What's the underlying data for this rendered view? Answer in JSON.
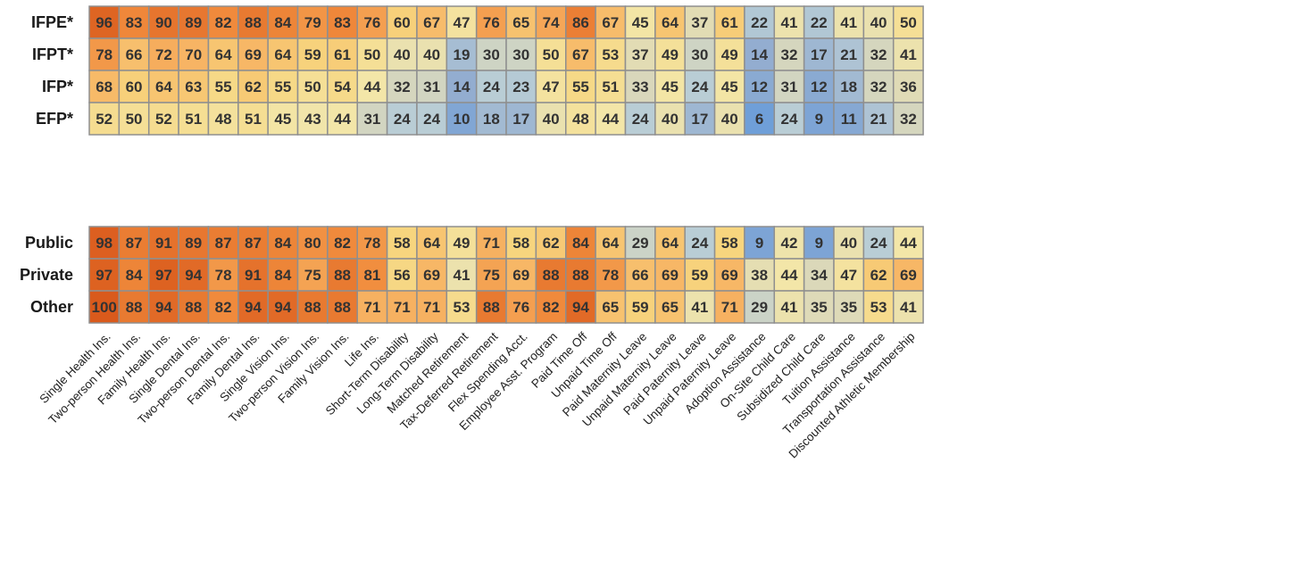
{
  "chart_data": {
    "type": "heatmap",
    "categories": [
      "Single Health Ins.",
      "Two-person Health Ins.",
      "Family Health Ins.",
      "Single Dental Ins.",
      "Two-person Dental Ins.",
      "Family Dental Ins.",
      "Single Vision Ins.",
      "Two-person Vision Ins.",
      "Family Vision Ins.",
      "Life Ins.",
      "Short-Term Disability",
      "Long-Term Disability",
      "Matched Retirement",
      "Tax-Deferred Retirement",
      "Flex Spending Acct.",
      "Employee Asst. Program",
      "Paid Time Off",
      "Unpaid Time Off",
      "Paid Maternity Leave",
      "Unpaid Maternity Leave",
      "Paid Paternity Leave",
      "Unpaid Paternity Leave",
      "Adoption Assistance",
      "On-Site Child Care",
      "Subsidized Child Care",
      "Tuition Assistance",
      "Transportation Assistance",
      "Discounted Athletic Membership"
    ],
    "panels": [
      {
        "rows": [
          {
            "name": "IFPE*",
            "values": [
              96,
              83,
              90,
              89,
              82,
              88,
              84,
              79,
              83,
              76,
              60,
              67,
              47,
              76,
              65,
              74,
              86,
              67,
              45,
              64,
              37,
              61,
              22,
              41,
              22,
              41,
              40,
              50
            ]
          },
          {
            "name": "IFPT*",
            "values": [
              78,
              66,
              72,
              70,
              64,
              69,
              64,
              59,
              61,
              50,
              40,
              40,
              19,
              30,
              30,
              50,
              67,
              53,
              37,
              49,
              30,
              49,
              14,
              32,
              17,
              21,
              32,
              41
            ]
          },
          {
            "name": "IFP*",
            "values": [
              68,
              60,
              64,
              63,
              55,
              62,
              55,
              50,
              54,
              44,
              32,
              31,
              14,
              24,
              23,
              47,
              55,
              51,
              33,
              45,
              24,
              45,
              12,
              31,
              12,
              18,
              32,
              36
            ]
          },
          {
            "name": "EFP*",
            "values": [
              52,
              50,
              52,
              51,
              48,
              51,
              45,
              43,
              44,
              31,
              24,
              24,
              10,
              18,
              17,
              40,
              48,
              44,
              24,
              40,
              17,
              40,
              6,
              24,
              9,
              11,
              21,
              32
            ]
          }
        ]
      },
      {
        "rows": [
          {
            "name": "Public",
            "values": [
              98,
              87,
              91,
              89,
              87,
              87,
              84,
              80,
              82,
              78,
              58,
              64,
              49,
              71,
              58,
              62,
              84,
              64,
              29,
              64,
              24,
              58,
              9,
              42,
              9,
              40,
              24,
              44
            ]
          },
          {
            "name": "Private",
            "values": [
              97,
              84,
              97,
              94,
              78,
              91,
              84,
              75,
              88,
              81,
              56,
              69,
              41,
              75,
              69,
              88,
              88,
              78,
              66,
              69,
              59,
              69,
              38,
              44,
              34,
              47,
              62,
              69
            ]
          },
          {
            "name": "Other",
            "values": [
              100,
              88,
              94,
              88,
              82,
              94,
              94,
              88,
              88,
              71,
              71,
              71,
              53,
              88,
              76,
              82,
              94,
              65,
              59,
              65,
              41,
              71,
              29,
              41,
              35,
              35,
              53,
              41
            ]
          }
        ]
      }
    ],
    "color_scale": {
      "stops": [
        {
          "value": 6,
          "color": "#6f9fd8"
        },
        {
          "value": 14,
          "color": "#93add0"
        },
        {
          "value": 24,
          "color": "#b9cdd5"
        },
        {
          "value": 33,
          "color": "#d9d7bb"
        },
        {
          "value": 44,
          "color": "#f3e6a8"
        },
        {
          "value": 58,
          "color": "#f7d57e"
        },
        {
          "value": 70,
          "color": "#f7b464"
        },
        {
          "value": 82,
          "color": "#f08a3c"
        },
        {
          "value": 100,
          "color": "#d95a1c"
        }
      ],
      "cell_border": "#8f8f8f"
    }
  }
}
